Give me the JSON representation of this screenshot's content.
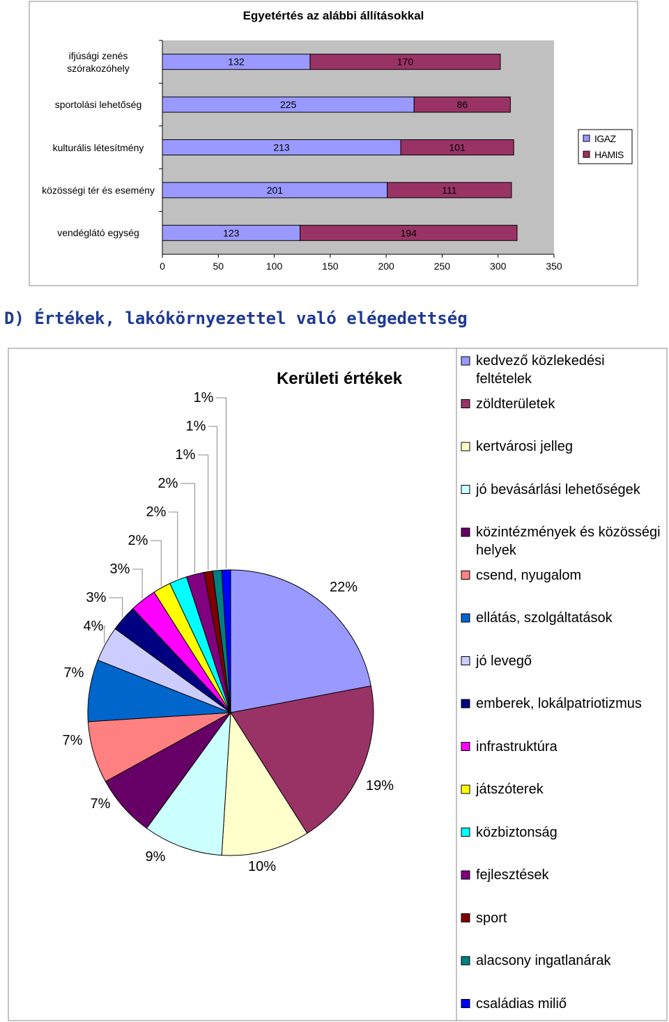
{
  "chart_data": [
    {
      "type": "stacked-barh",
      "title": "Egyetértés az alábbi állításokkal",
      "categories": [
        "ifjúsági zenés szórakozóhely",
        "sportolási lehetőség",
        "kulturális létesítmény",
        "közösségi tér és esemény",
        "vendéglátó egység"
      ],
      "series": [
        {
          "name": "IGAZ",
          "color": "#9999ff",
          "values": [
            132,
            225,
            213,
            201,
            123
          ]
        },
        {
          "name": "HAMIS",
          "color": "#993366",
          "values": [
            170,
            86,
            101,
            111,
            194
          ]
        }
      ],
      "xlim": [
        0,
        350
      ],
      "xticks": [
        0,
        50,
        100,
        150,
        200,
        250,
        300,
        350
      ],
      "legend": "right"
    },
    {
      "type": "pie",
      "title": "Kerületi értékek",
      "categories": [
        "kedvező közlekedési feltételek",
        "zöldterületek",
        "kertvárosi jelleg",
        "jó bevásárlási lehetőségek",
        "közintézmények és közösségi helyek",
        "csend, nyugalom",
        "ellátás, szolgáltatások",
        "jó levegő",
        "emberek, lokálpatriotizmus",
        "infrastruktúra",
        "játszóterek",
        "közbiztonság",
        "fejlesztések",
        "sport",
        "alacsony ingatlanárak",
        "családias miliő"
      ],
      "values": [
        22,
        19,
        10,
        9,
        7,
        7,
        7,
        4,
        3,
        3,
        2,
        2,
        2,
        1,
        1,
        1
      ],
      "value_labels": [
        "22%",
        "19%",
        "10%",
        "9%",
        "7%",
        "7%",
        "7%",
        "4%",
        "3%",
        "3%",
        "2%",
        "2%",
        "2%",
        "1%",
        "1%",
        "1%"
      ],
      "colors": [
        "#9999ff",
        "#993366",
        "#ffffcc",
        "#ccffff",
        "#660066",
        "#ff8080",
        "#0066cc",
        "#ccccff",
        "#000080",
        "#ff00ff",
        "#ffff00",
        "#00ffff",
        "#800080",
        "#800000",
        "#008080",
        "#0000ff"
      ],
      "legend": "right"
    }
  ],
  "heading": "D) Értékek, lakókörnyezettel való elégedettség"
}
